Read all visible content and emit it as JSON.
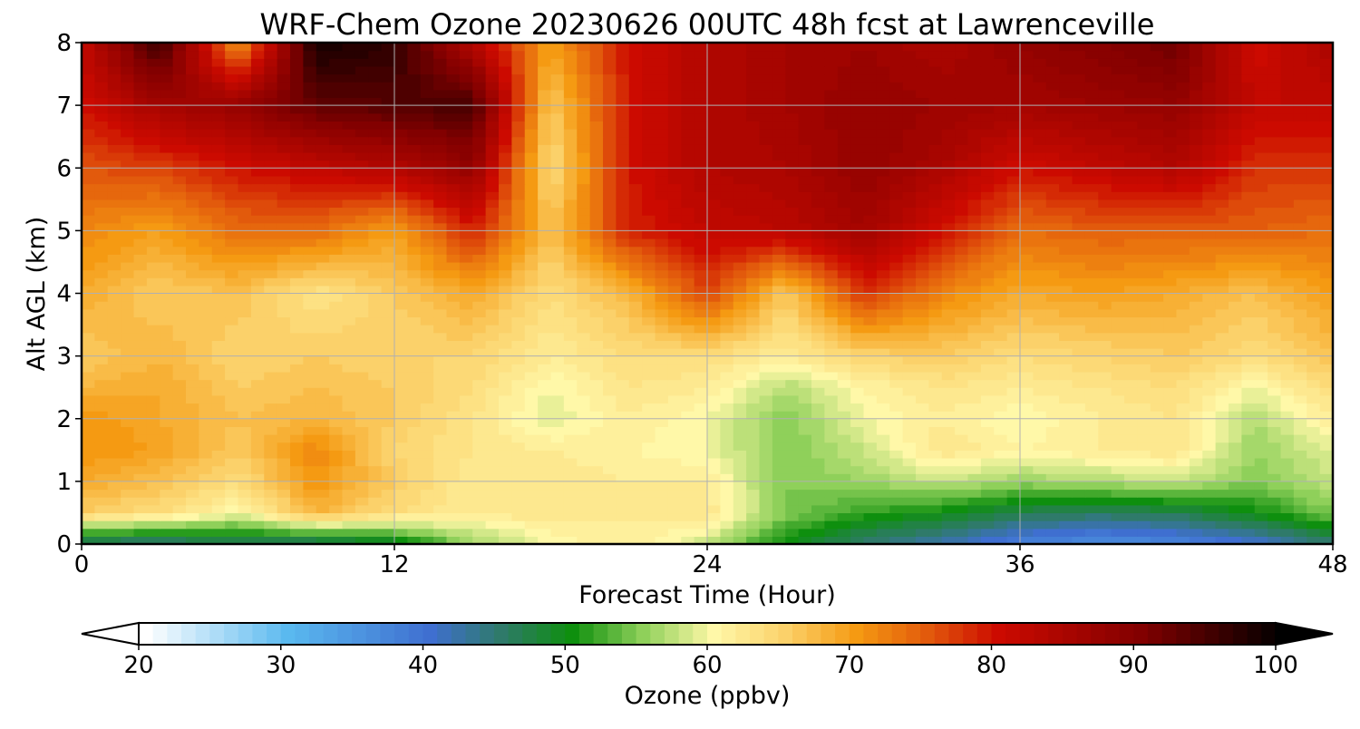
{
  "chart_data": {
    "type": "heatmap",
    "subtype": "filled-contour",
    "title": "WRF-Chem Ozone  20230626 00UTC 48h fcst at Lawrenceville",
    "xlabel": "Forecast Time (Hour)",
    "ylabel": "Alt AGL (km)",
    "xlim": [
      0,
      48
    ],
    "ylim": [
      0,
      8
    ],
    "xticks": [
      0,
      12,
      24,
      36,
      48
    ],
    "yticks": [
      0,
      1,
      2,
      3,
      4,
      5,
      6,
      7,
      8
    ],
    "grid": true,
    "x_hours": [
      0,
      3,
      6,
      9,
      12,
      15,
      18,
      21,
      24,
      27,
      30,
      33,
      36,
      39,
      42,
      45,
      48
    ],
    "y_km": [
      0,
      0.5,
      1,
      1.5,
      2,
      2.5,
      3,
      4,
      5,
      6,
      7,
      8
    ],
    "values": [
      [
        45,
        44,
        46,
        45,
        48,
        56,
        60,
        62,
        58,
        50,
        45,
        42,
        38,
        36,
        37,
        40,
        45
      ],
      [
        66,
        64,
        60,
        68,
        64,
        62,
        63,
        62,
        63,
        55,
        52,
        50,
        47,
        46,
        47,
        50,
        55
      ],
      [
        69,
        67,
        64,
        71,
        66,
        62,
        63,
        62,
        62,
        55,
        56,
        58,
        56,
        57,
        58,
        55,
        58
      ],
      [
        71,
        70,
        66,
        72,
        65,
        63,
        62,
        61,
        60,
        55,
        58,
        63,
        61,
        62,
        63,
        56,
        59
      ],
      [
        71,
        69,
        67,
        68,
        66,
        63,
        59,
        62,
        60,
        55,
        60,
        62,
        60,
        62,
        63,
        57,
        62
      ],
      [
        68,
        69,
        66,
        67,
        66,
        64,
        60,
        63,
        62,
        57,
        61,
        63,
        62,
        63,
        64,
        60,
        64
      ],
      [
        66,
        68,
        65,
        66,
        65,
        65,
        62,
        64,
        64,
        62,
        65,
        66,
        64,
        65,
        66,
        64,
        67
      ],
      [
        69,
        66,
        67,
        63,
        66,
        69,
        64,
        68,
        77,
        66,
        78,
        72,
        69,
        70,
        69,
        67,
        70
      ],
      [
        72,
        70,
        74,
        74,
        70,
        79,
        67,
        79,
        82,
        83,
        86,
        80,
        74,
        75,
        75,
        75,
        74
      ],
      [
        76,
        77,
        80,
        82,
        84,
        88,
        64,
        80,
        84,
        85,
        88,
        85,
        80,
        82,
        84,
        78,
        78
      ],
      [
        80,
        86,
        88,
        93,
        94,
        95,
        66,
        80,
        84,
        86,
        88,
        87,
        86,
        87,
        88,
        82,
        82
      ],
      [
        82,
        96,
        70,
        99,
        97,
        84,
        70,
        80,
        84,
        86,
        87,
        85,
        88,
        90,
        92,
        80,
        85
      ]
    ],
    "colorbar": {
      "label": "Ozone  (ppbv)",
      "min": 20,
      "max": 100,
      "ticks": [
        20,
        30,
        40,
        50,
        60,
        70,
        80,
        90,
        100
      ],
      "extend": "both",
      "stops": [
        {
          "v": 20,
          "color": "#ffffff"
        },
        {
          "v": 30,
          "color": "#5ab9ef"
        },
        {
          "v": 40,
          "color": "#3f6fd0"
        },
        {
          "v": 45,
          "color": "#2f7a6a"
        },
        {
          "v": 50,
          "color": "#0e8f0e"
        },
        {
          "v": 55,
          "color": "#8fd05a"
        },
        {
          "v": 60,
          "color": "#fff8a8"
        },
        {
          "v": 65,
          "color": "#fbd16a"
        },
        {
          "v": 70,
          "color": "#f59a12"
        },
        {
          "v": 75,
          "color": "#e25a0c"
        },
        {
          "v": 80,
          "color": "#cc0a00"
        },
        {
          "v": 90,
          "color": "#820000"
        },
        {
          "v": 100,
          "color": "#000000"
        }
      ]
    }
  }
}
